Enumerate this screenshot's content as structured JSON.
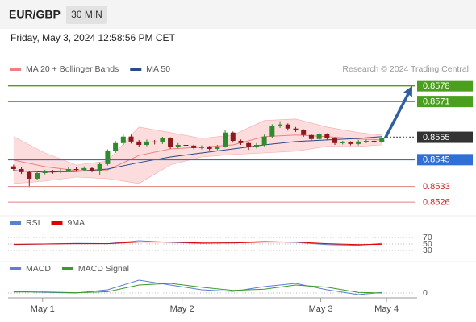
{
  "header": {
    "symbol": "EUR/GBP",
    "timeframe": "30 MIN",
    "datetime": "Friday, May 3, 2024 12:58:56 PM CET"
  },
  "chart_data": [
    {
      "type": "candlestick",
      "credit": "Research © 2024 Trading Central",
      "x": [
        0,
        1,
        2,
        3,
        4,
        5,
        6,
        7,
        8,
        9,
        10,
        11,
        12,
        13,
        14,
        15,
        16,
        17,
        18,
        19,
        20,
        21,
        22,
        23,
        24,
        25,
        26,
        27,
        28,
        29,
        30,
        31,
        32,
        33,
        34,
        35,
        36,
        37,
        38,
        39,
        40,
        41,
        42,
        43,
        44,
        45,
        46,
        47
      ],
      "candles": {
        "up_color": "#2e8b2e",
        "down_color": "#8b1a1a",
        "open": [
          0.8542,
          0.85408,
          0.85394,
          0.85365,
          0.8539,
          0.85397,
          0.85394,
          0.85401,
          0.85408,
          0.85404,
          0.85412,
          0.85401,
          0.8543,
          0.85488,
          0.85524,
          0.85553,
          0.85531,
          0.85516,
          0.85531,
          0.85528,
          0.85545,
          0.85506,
          0.85516,
          0.85513,
          0.85502,
          0.85506,
          0.85498,
          0.85509,
          0.85571,
          0.85534,
          0.85524,
          0.85506,
          0.85516,
          0.85553,
          0.85599,
          0.85607,
          0.85589,
          0.85581,
          0.8556,
          0.85542,
          0.85563,
          0.85545,
          0.85524,
          0.85527,
          0.8552,
          0.85531,
          0.85534,
          0.85529
        ],
        "high": [
          0.85428,
          0.85416,
          0.854,
          0.85398,
          0.85405,
          0.85404,
          0.8541,
          0.85416,
          0.85418,
          0.8542,
          0.85418,
          0.85438,
          0.85496,
          0.85534,
          0.85566,
          0.85562,
          0.85538,
          0.8554,
          0.85538,
          0.85552,
          0.8555,
          0.85524,
          0.85522,
          0.85518,
          0.85514,
          0.85512,
          0.85516,
          0.85584,
          0.85576,
          0.8554,
          0.8553,
          0.85524,
          0.85562,
          0.85608,
          0.85622,
          0.85612,
          0.85596,
          0.85586,
          0.85566,
          0.85572,
          0.85568,
          0.8555,
          0.85534,
          0.85532,
          0.85538,
          0.8554,
          0.85542,
          0.85552
        ],
        "low": [
          0.854,
          0.85386,
          0.85328,
          0.85358,
          0.85384,
          0.85387,
          0.85388,
          0.85395,
          0.85398,
          0.85398,
          0.85394,
          0.8538,
          0.85424,
          0.8548,
          0.85516,
          0.85522,
          0.85508,
          0.8551,
          0.85518,
          0.8552,
          0.85498,
          0.855,
          0.85506,
          0.85496,
          0.85496,
          0.85492,
          0.85492,
          0.85504,
          0.85526,
          0.85516,
          0.85494,
          0.855,
          0.8551,
          0.85548,
          0.85592,
          0.8558,
          0.85574,
          0.85552,
          0.85534,
          0.85536,
          0.85538,
          0.85516,
          0.85518,
          0.85514,
          0.85514,
          0.85524,
          0.85522,
          0.85522
        ],
        "close": [
          0.85408,
          0.85394,
          0.85365,
          0.8539,
          0.85397,
          0.85394,
          0.85401,
          0.85408,
          0.85404,
          0.85412,
          0.85401,
          0.8543,
          0.85488,
          0.85524,
          0.85553,
          0.85531,
          0.85516,
          0.85531,
          0.85528,
          0.85545,
          0.85506,
          0.85516,
          0.85513,
          0.85502,
          0.85506,
          0.85498,
          0.85509,
          0.85571,
          0.85534,
          0.85524,
          0.85506,
          0.85516,
          0.85553,
          0.85599,
          0.85607,
          0.85589,
          0.85581,
          0.8556,
          0.85542,
          0.85563,
          0.85545,
          0.85524,
          0.85527,
          0.8552,
          0.85531,
          0.85534,
          0.85529,
          0.85545
        ]
      },
      "overlays": {
        "x": [
          0,
          4,
          8,
          12,
          16,
          20,
          24,
          28,
          32,
          36,
          40,
          44,
          47
        ],
        "series": [
          {
            "name": "MA 20 + Bollinger Bands",
            "color": "#f08080",
            "band_color": "#fbd3d3",
            "values": [
              0.85448,
              0.85419,
              0.85401,
              0.85404,
              0.85469,
              0.85498,
              0.85506,
              0.85516,
              0.85553,
              0.8556,
              0.85553,
              0.85542,
              0.85538
            ],
            "upper": [
              0.85553,
              0.8548,
              0.85426,
              0.85444,
              0.85596,
              0.85571,
              0.85545,
              0.8556,
              0.85625,
              0.85632,
              0.85596,
              0.85571,
              0.8556
            ],
            "lower": [
              0.85343,
              0.85354,
              0.85372,
              0.85365,
              0.85343,
              0.85426,
              0.85462,
              0.85473,
              0.8548,
              0.85488,
              0.85509,
              0.85509,
              0.85516
            ]
          },
          {
            "name": "MA 50",
            "color": "#2a4a8a",
            "values": [
              0.85401,
              0.85394,
              0.85397,
              0.85408,
              0.85437,
              0.85462,
              0.8548,
              0.85498,
              0.85516,
              0.85531,
              0.85538,
              0.85545,
              0.85553
            ]
          }
        ]
      },
      "levels": [
        {
          "value": 0.8578,
          "color": "#4aa01e",
          "style": "solid",
          "label_box": true
        },
        {
          "value": 0.8571,
          "color": "#4aa01e",
          "style": "solid",
          "label_box": true
        },
        {
          "value": 0.8555,
          "color": "#333333",
          "style": "dotted",
          "label_box": true
        },
        {
          "value": 0.8545,
          "color": "#2f6fd6",
          "style": "solid",
          "label_box": true
        },
        {
          "value": 0.8533,
          "color": "#e08080",
          "style": "solid",
          "label_box": false,
          "text_color": "#cc2222"
        },
        {
          "value": 0.8526,
          "color": "#e08080",
          "style": "solid",
          "label_box": false,
          "text_color": "#cc2222"
        }
      ],
      "forecast_color": "#2f5f9f",
      "xlim": [
        -0.5,
        51.5
      ],
      "xticks": [
        {
          "value": 3.7,
          "label": "May 1"
        },
        {
          "value": 21.5,
          "label": "May 2"
        },
        {
          "value": 39.2,
          "label": "May 3"
        },
        {
          "value": 47.6,
          "label": "May 4"
        }
      ],
      "ylim": [
        0.8521,
        0.8584
      ]
    },
    {
      "type": "line",
      "x": [
        0,
        4,
        8,
        12,
        16,
        20,
        24,
        28,
        32,
        36,
        40,
        44,
        47
      ],
      "series": [
        {
          "name": "RSI",
          "color": "#5b7fd6",
          "values": [
            48,
            50,
            52,
            51,
            60,
            55,
            52,
            54,
            58,
            55,
            48,
            46,
            52
          ]
        },
        {
          "name": "9MA",
          "color": "#e00000",
          "values": [
            49,
            50,
            51,
            51,
            56,
            56,
            53,
            53,
            56,
            56,
            51,
            48,
            49
          ]
        }
      ],
      "xlim": [
        -0.5,
        51.5
      ],
      "ylim": [
        0,
        100
      ],
      "yticks": [
        30,
        50,
        70
      ],
      "grid": true
    },
    {
      "type": "line",
      "x": [
        0,
        4,
        8,
        12,
        16,
        20,
        24,
        28,
        32,
        36,
        40,
        44,
        47
      ],
      "series": [
        {
          "name": "MACD",
          "color": "#5b7fd6",
          "values": [
            5e-05,
            2e-05,
            0.0,
            0.0001,
            0.0004,
            0.00025,
            0.0001,
            5e-05,
            0.0002,
            0.0003,
            0.0001,
            -5e-05,
            2e-05
          ]
        },
        {
          "name": "MACD Signal",
          "color": "#3a9a2a",
          "values": [
            3e-05,
            3e-05,
            1e-05,
            4e-05,
            0.00025,
            0.0003,
            0.00018,
            8e-05,
            0.00012,
            0.00025,
            0.00018,
            2e-05,
            0.0
          ]
        }
      ],
      "xlim": [
        -0.5,
        51.5
      ],
      "ylim": [
        -0.0004,
        0.0006
      ],
      "yticks": [
        0
      ],
      "grid": true
    }
  ]
}
